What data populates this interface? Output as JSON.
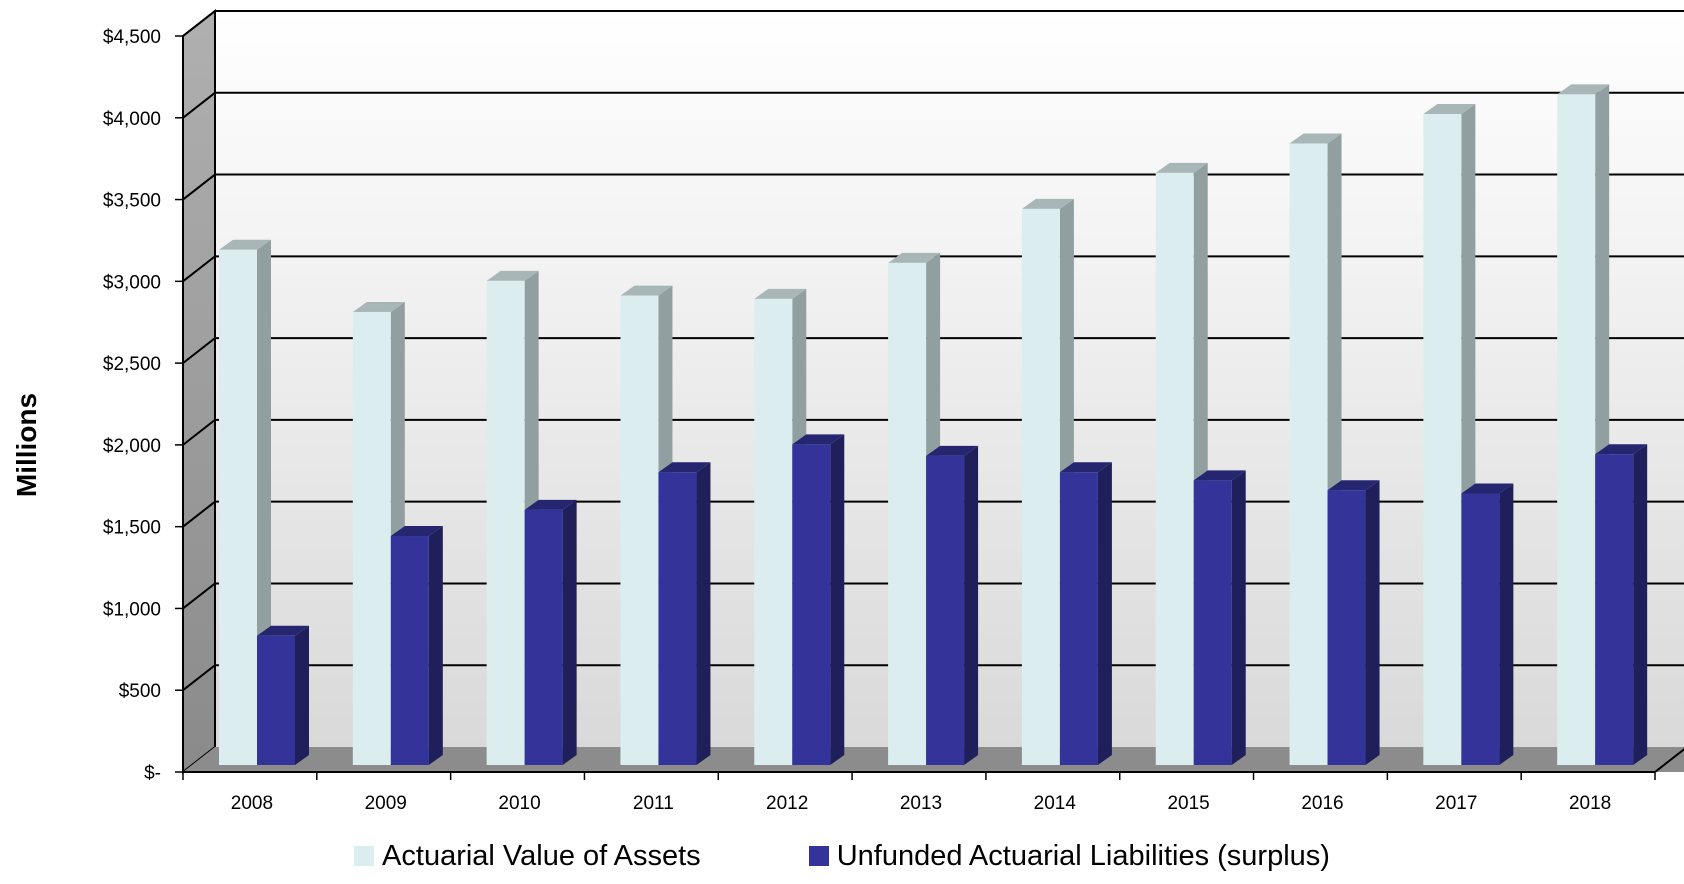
{
  "chart_data": {
    "type": "bar",
    "title": "",
    "xlabel": "",
    "ylabel": "Millions",
    "categories": [
      "2008",
      "2009",
      "2010",
      "2011",
      "2012",
      "2013",
      "2014",
      "2015",
      "2016",
      "2017",
      "2018"
    ],
    "series": [
      {
        "name": "Actuarial Value of Assets",
        "color": "#dcedf0",
        "values": [
          3150,
          2770,
          2960,
          2870,
          2850,
          3070,
          3400,
          3620,
          3800,
          3980,
          4100
        ]
      },
      {
        "name": "Unfunded Actuarial Liabilities (surplus)",
        "color": "#333399",
        "values": [
          790,
          1400,
          1560,
          1790,
          1960,
          1890,
          1790,
          1740,
          1680,
          1660,
          1900
        ]
      }
    ],
    "ylim": [
      0,
      4500
    ],
    "yticks": [
      0,
      500,
      1000,
      1500,
      2000,
      2500,
      3000,
      3500,
      4000,
      4500
    ],
    "ytick_labels": [
      "$-",
      "$500",
      "$1,000",
      "$1,500",
      "$2,000",
      "$2,500",
      "$3,000",
      "$3,500",
      "$4,000",
      "$4,500"
    ],
    "grid": true,
    "legend_position": "bottom",
    "style": "3d"
  }
}
